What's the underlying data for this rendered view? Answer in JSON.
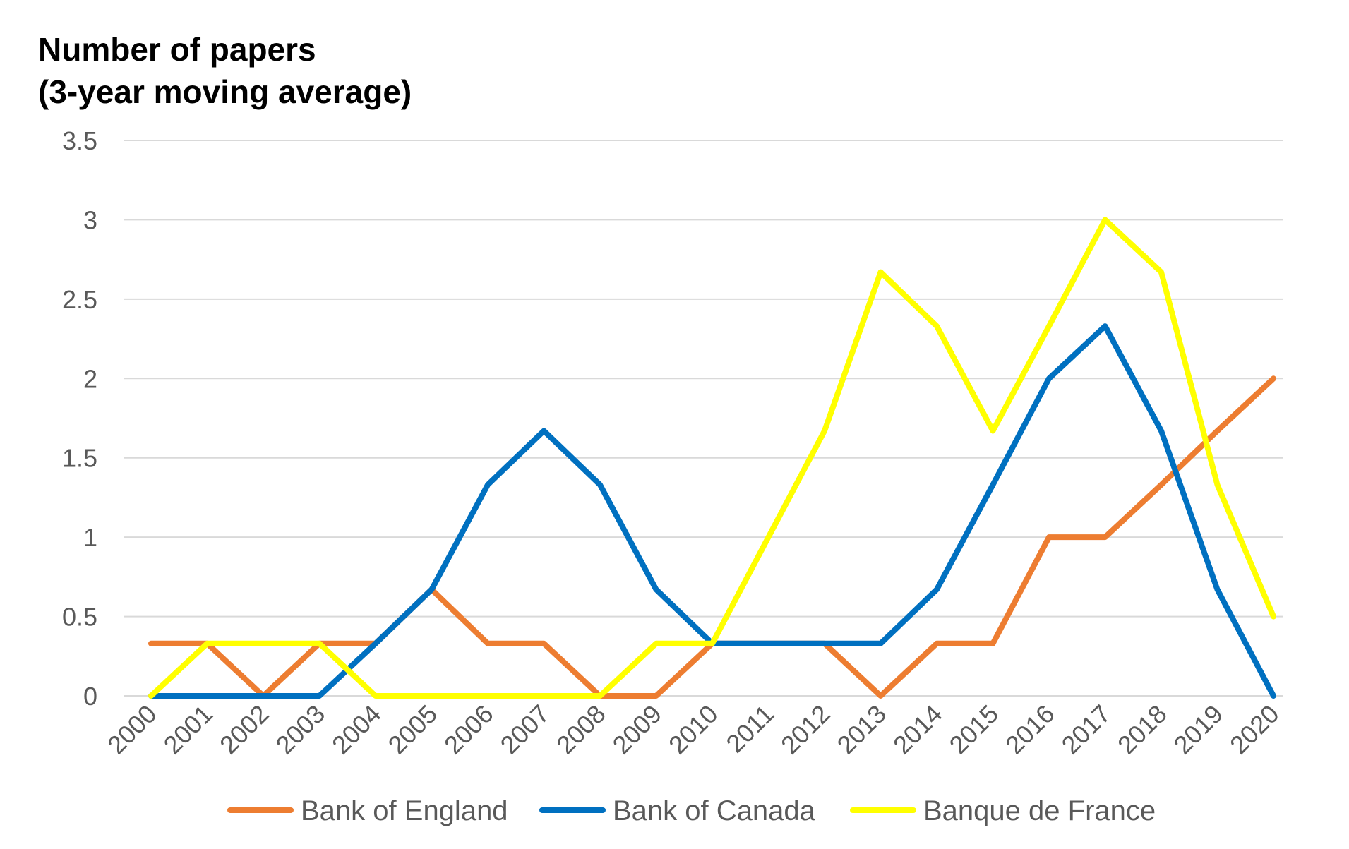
{
  "chart_data": {
    "type": "line",
    "title_lines": [
      "Number of papers",
      "(3-year moving average)"
    ],
    "categories": [
      "2000",
      "2001",
      "2002",
      "2003",
      "2004",
      "2005",
      "2006",
      "2007",
      "2008",
      "2009",
      "2010",
      "2011",
      "2012",
      "2013",
      "2014",
      "2015",
      "2016",
      "2017",
      "2018",
      "2019",
      "2020"
    ],
    "ylim": [
      0,
      3.5
    ],
    "yticks": [
      "0",
      "0.5",
      "1",
      "1.5",
      "2",
      "2.5",
      "3",
      "3.5"
    ],
    "grid": true,
    "legend_position": "bottom",
    "series": [
      {
        "name": "Bank of England",
        "color": "#ED7D31",
        "values": [
          0.33,
          0.33,
          0,
          0.33,
          0.33,
          0.67,
          0.33,
          0.33,
          0,
          0,
          0.33,
          0.33,
          0.33,
          0,
          0.33,
          0.33,
          1,
          1,
          1.33,
          1.67,
          2
        ]
      },
      {
        "name": "Bank of Canada",
        "color": "#0070C0",
        "values": [
          0,
          0,
          0,
          0,
          0.33,
          0.67,
          1.33,
          1.67,
          1.33,
          0.67,
          0.33,
          0.33,
          0.33,
          0.33,
          0.67,
          1.33,
          2,
          2.33,
          1.67,
          0.67,
          0
        ]
      },
      {
        "name": "Banque de France",
        "color": "#FFFF00",
        "values": [
          0,
          0.33,
          0.33,
          0.33,
          0,
          0,
          0,
          0,
          0,
          0.33,
          0.33,
          1,
          1.67,
          2.67,
          2.33,
          1.67,
          2.33,
          3,
          2.67,
          1.33,
          0.5
        ]
      }
    ]
  }
}
